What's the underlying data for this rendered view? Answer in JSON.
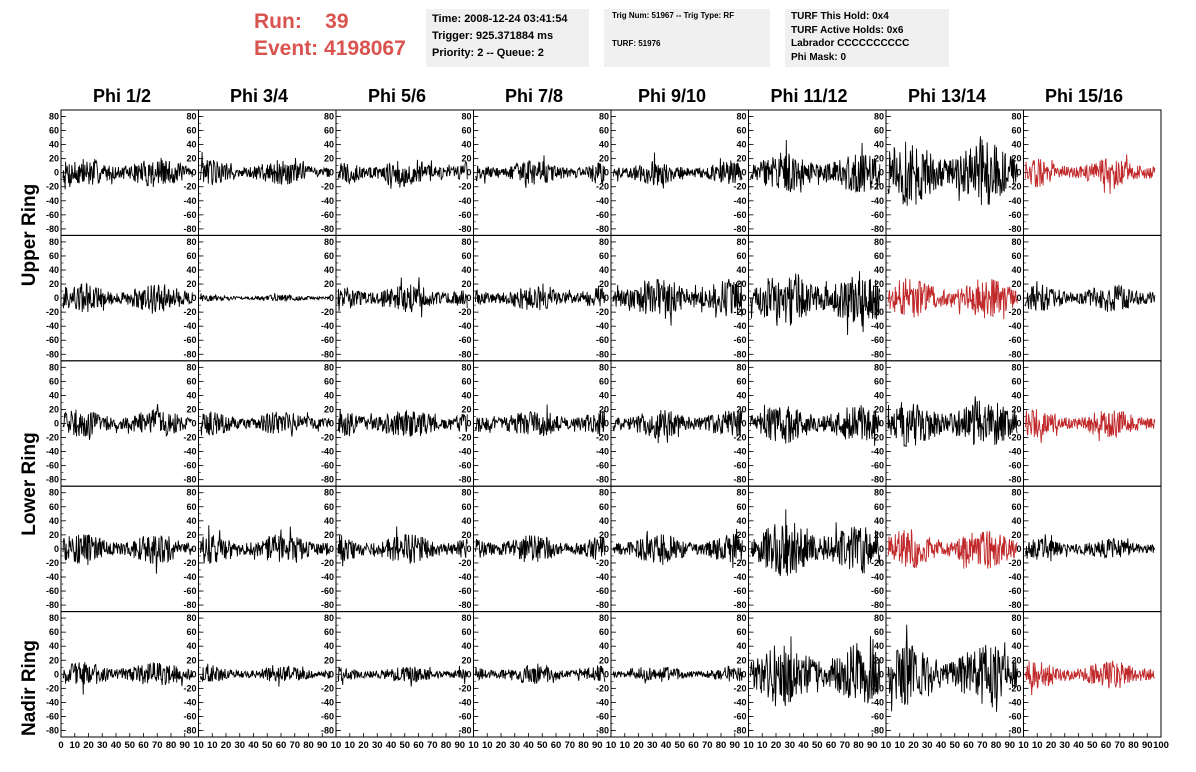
{
  "header": {
    "run_label": "Run:",
    "run_value": "39",
    "event_label": "Event:",
    "event_value": "4198067",
    "accent_color": "#d9534f",
    "info_box_1": {
      "time": "Time: 2008-12-24 03:41:54",
      "trigger": "Trigger: 925.371884 ms",
      "priority": "Priority: 2 -- Queue: 2"
    },
    "info_box_2": {
      "trig": "Trig Num: 51967 -- Trig Type: RF",
      "turf": "TURF: 51976"
    },
    "info_box_3": {
      "hold": "TURF This Hold: 0x4",
      "active": "TURF Active Holds: 0x6",
      "labrador": "Labrador CCCCCCCCCC",
      "phimask": "Phi Mask: 0"
    }
  },
  "chart_data": {
    "type": "line",
    "columns": [
      "Phi 1/2",
      "Phi 3/4",
      "Phi 5/6",
      "Phi 7/8",
      "Phi 9/10",
      "Phi 11/12",
      "Phi 13/14",
      "Phi 15/16"
    ],
    "rows": [
      "Upper Ring",
      "Upper Ring",
      "Lower Ring",
      "Lower Ring",
      "Nadir Ring"
    ],
    "row_labels": [
      "Upper Ring",
      "Lower Ring",
      "Nadir Ring"
    ],
    "ylim": [
      -85,
      85
    ],
    "y_ticks": [
      "80",
      "60",
      "40",
      "20",
      "0",
      "-20",
      "-40",
      "-60",
      "-80"
    ],
    "xlim": [
      0,
      100
    ],
    "x_ticks_first": [
      "0",
      "10",
      "20",
      "30",
      "40",
      "50",
      "60",
      "70",
      "80",
      "90",
      "10"
    ],
    "x_ticks": [
      "10",
      "20",
      "30",
      "40",
      "50",
      "60",
      "70",
      "80",
      "90",
      "10"
    ],
    "x_ticks_last": [
      "10",
      "20",
      "30",
      "40",
      "50",
      "60",
      "70",
      "80",
      "90",
      "100"
    ],
    "amplitude": [
      [
        18,
        16,
        17,
        15,
        15,
        24,
        40,
        17
      ],
      [
        18,
        4,
        17,
        15,
        24,
        35,
        24,
        17
      ],
      [
        17,
        15,
        18,
        17,
        18,
        24,
        29,
        17
      ],
      [
        18,
        18,
        18,
        17,
        18,
        33,
        24,
        13
      ],
      [
        15,
        10,
        10,
        12,
        9,
        38,
        37,
        17
      ]
    ],
    "highlight": [
      [
        false,
        false,
        false,
        false,
        false,
        false,
        false,
        true
      ],
      [
        false,
        false,
        false,
        false,
        false,
        false,
        true,
        false
      ],
      [
        false,
        false,
        false,
        false,
        false,
        false,
        false,
        true
      ],
      [
        false,
        false,
        false,
        false,
        false,
        false,
        true,
        false
      ],
      [
        false,
        false,
        false,
        false,
        false,
        false,
        false,
        true
      ]
    ],
    "colors": {
      "normal": "#000000",
      "highlight": "#c0282a"
    }
  }
}
